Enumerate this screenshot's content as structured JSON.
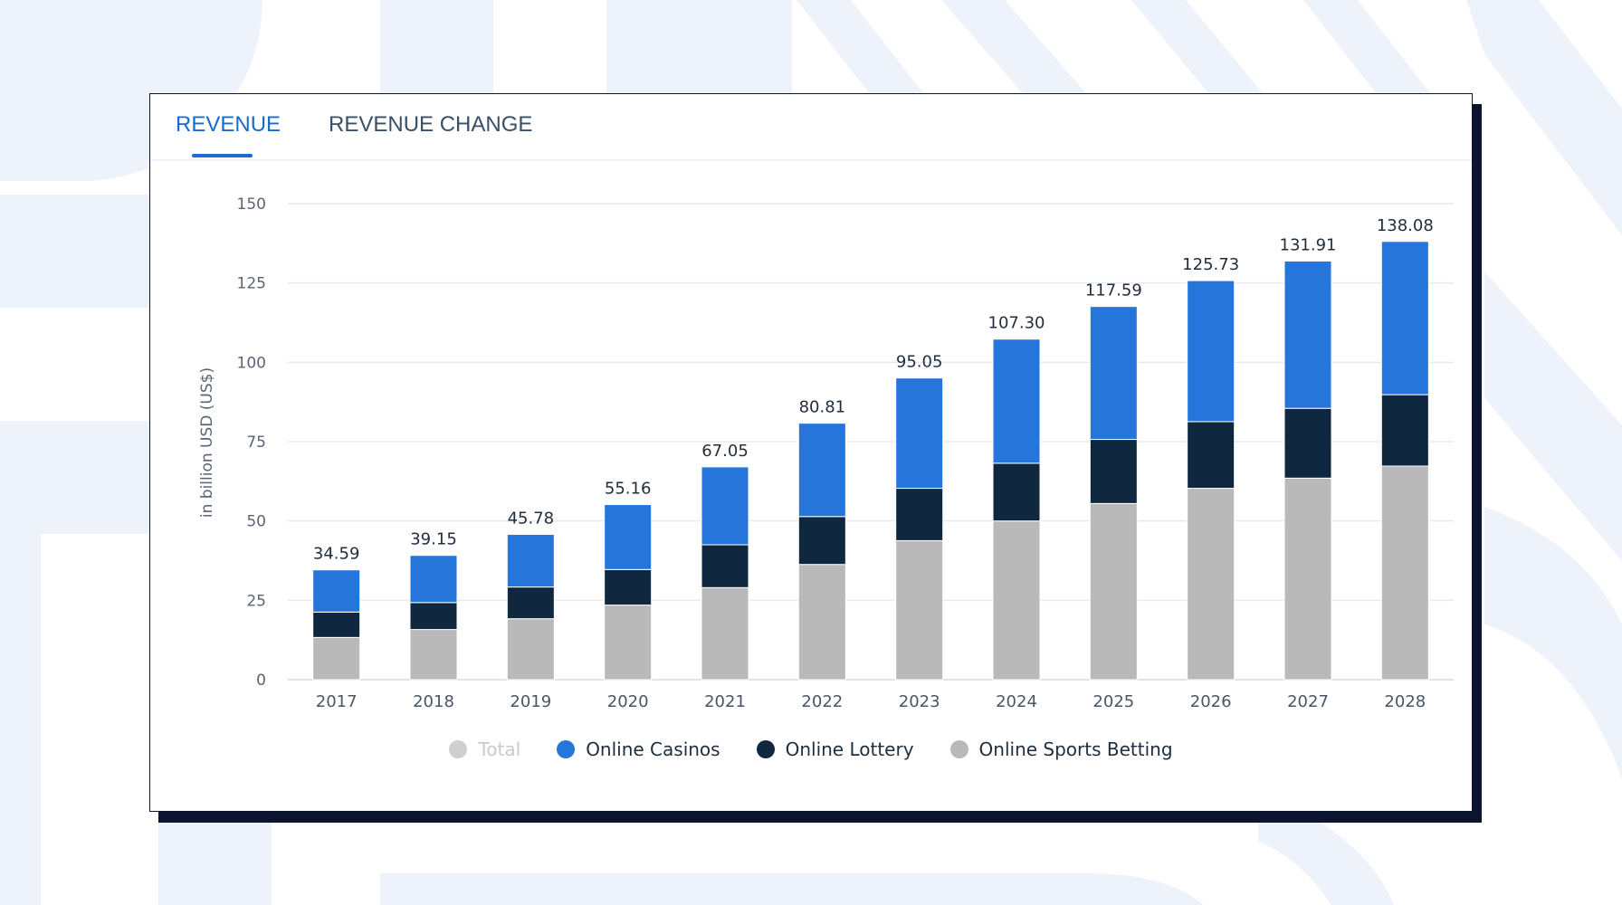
{
  "tabs": [
    {
      "label": "REVENUE",
      "active": true
    },
    {
      "label": "REVENUE CHANGE",
      "active": false
    }
  ],
  "colors": {
    "accent": "#1a6ad1",
    "casinos": "#2575db",
    "lottery": "#0f2840",
    "sports": "#b9b9b9",
    "total": "#cfcfcf",
    "card_border": "#0b1530",
    "background_shapes": "#eef3fb"
  },
  "legend": [
    {
      "label": "Total",
      "muted": true,
      "color": "#cfcfcf"
    },
    {
      "label": "Online Casinos",
      "muted": false,
      "color": "#2575db"
    },
    {
      "label": "Online Lottery",
      "muted": false,
      "color": "#0f2840"
    },
    {
      "label": "Online Sports Betting",
      "muted": false,
      "color": "#b9b9b9"
    }
  ],
  "chart_data": {
    "type": "bar",
    "stacked": true,
    "title": "",
    "xlabel": "",
    "ylabel": "in billion USD (US$)",
    "ylim": [
      0,
      150
    ],
    "yticks": [
      0,
      25,
      50,
      75,
      100,
      125,
      150
    ],
    "grid": true,
    "legend_position": "bottom",
    "categories": [
      "2017",
      "2018",
      "2019",
      "2020",
      "2021",
      "2022",
      "2023",
      "2024",
      "2025",
      "2026",
      "2027",
      "2028"
    ],
    "series": [
      {
        "name": "Online Sports Betting",
        "values": [
          13.3,
          15.8,
          19.2,
          23.5,
          29.0,
          36.3,
          43.8,
          50.0,
          55.5,
          60.3,
          63.5,
          67.3
        ]
      },
      {
        "name": "Online Lottery",
        "values": [
          8.0,
          8.5,
          10.0,
          11.2,
          13.5,
          15.1,
          16.5,
          18.2,
          20.2,
          21.0,
          22.0,
          22.5
        ]
      },
      {
        "name": "Online Casinos",
        "values": [
          13.29,
          14.85,
          16.58,
          20.46,
          24.55,
          29.41,
          34.75,
          39.1,
          41.89,
          44.43,
          46.41,
          48.28
        ]
      }
    ],
    "totals": [
      34.59,
      39.15,
      45.78,
      55.16,
      67.05,
      80.81,
      95.05,
      107.3,
      117.59,
      125.73,
      131.91,
      138.08
    ],
    "total_labels": [
      "34.59",
      "39.15",
      "45.78",
      "55.16",
      "67.05",
      "80.81",
      "95.05",
      "107.30",
      "117.59",
      "125.73",
      "131.91",
      "138.08"
    ]
  }
}
